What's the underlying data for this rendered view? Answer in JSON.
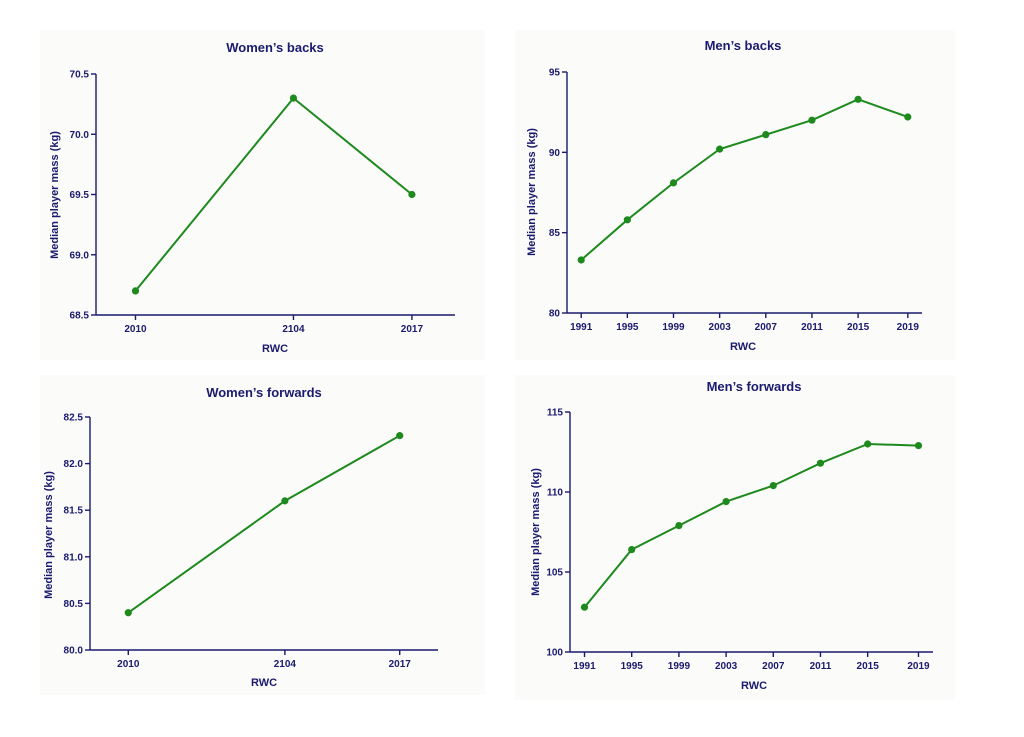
{
  "chart_data": [
    {
      "type": "line",
      "title": "Women’s backs",
      "xlabel": "RWC",
      "ylabel": "Median player mass (kg)",
      "categories": [
        "2010",
        "2104",
        "2017"
      ],
      "series": [
        {
          "values": [
            68.7,
            70.3,
            69.5
          ]
        }
      ],
      "ylim": [
        68.5,
        70.5
      ],
      "yticks": [
        "68.5",
        "69.0",
        "69.5",
        "70.0",
        "70.5"
      ],
      "grid": false
    },
    {
      "type": "line",
      "title": "Men’s backs",
      "xlabel": "RWC",
      "ylabel": "Median player mass (kg)",
      "categories": [
        "1991",
        "1995",
        "1999",
        "2003",
        "2007",
        "2011",
        "2015",
        "2019"
      ],
      "series": [
        {
          "values": [
            83.3,
            85.8,
            88.1,
            90.2,
            91.1,
            92.0,
            93.3,
            92.2
          ]
        }
      ],
      "ylim": [
        80,
        95
      ],
      "yticks": [
        "80",
        "85",
        "90",
        "95"
      ],
      "grid": false
    },
    {
      "type": "line",
      "title": "Women’s forwards",
      "xlabel": "RWC",
      "ylabel": "Median player mass (kg)",
      "categories": [
        "2010",
        "2104",
        "2017"
      ],
      "series": [
        {
          "values": [
            80.4,
            81.6,
            82.3
          ]
        }
      ],
      "ylim": [
        80.0,
        82.5
      ],
      "yticks": [
        "80.0",
        "80.5",
        "81.0",
        "81.5",
        "82.0",
        "82.5"
      ],
      "grid": false
    },
    {
      "type": "line",
      "title": "Men’s forwards",
      "xlabel": "RWC",
      "ylabel": "Median player mass (kg)",
      "categories": [
        "1991",
        "1995",
        "1999",
        "2003",
        "2007",
        "2011",
        "2015",
        "2019"
      ],
      "series": [
        {
          "values": [
            102.8,
            106.4,
            107.9,
            109.4,
            110.4,
            111.8,
            113.0,
            112.9
          ]
        }
      ],
      "ylim": [
        100,
        115
      ],
      "yticks": [
        "100",
        "105",
        "110",
        "115"
      ],
      "grid": false
    }
  ],
  "colors": {
    "axis": "#1a1a6e",
    "series": "#1e8a1e",
    "panel_bg": "#fbfbfa"
  }
}
